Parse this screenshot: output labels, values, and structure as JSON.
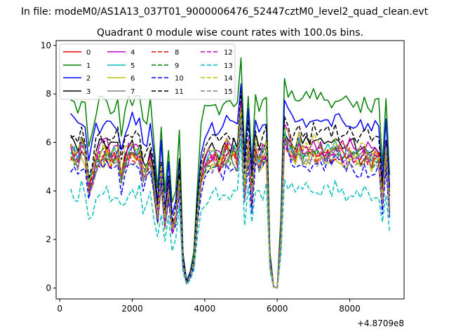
{
  "figure": {
    "suptitle": "In file: modeM0/AS1A13_037T01_9000006476_52447cztM0_level2_quad_clean.evt"
  },
  "chart_data": {
    "type": "line",
    "title": "Quadrant 0 module wise count rates with 100.0s bins.",
    "xlabel": "",
    "ylabel": "",
    "x_offset_label": "+4.8709e8",
    "xlim": [
      -100,
      9500
    ],
    "ylim": [
      -0.45,
      10.2
    ],
    "xticks": [
      0,
      2000,
      4000,
      6000,
      8000
    ],
    "xtick_labels": [
      "0",
      "2000",
      "4000",
      "6000",
      "8000"
    ],
    "yticks": [
      0,
      2,
      4,
      6,
      8,
      10
    ],
    "ytick_labels": [
      "0",
      "2",
      "4",
      "6",
      "8",
      "10"
    ],
    "grid": false,
    "legend_position": "upper-left",
    "legend_columns": 4,
    "series": [
      {
        "name": "0",
        "color": "#ff0000",
        "dash": "solid",
        "offset": 0.0,
        "seed": 11
      },
      {
        "name": "1",
        "color": "#008000",
        "dash": "solid",
        "offset": 2.2,
        "seed": 23
      },
      {
        "name": "2",
        "color": "#0000ff",
        "dash": "solid",
        "offset": 1.3,
        "seed": 37
      },
      {
        "name": "3",
        "color": "#000000",
        "dash": "solid",
        "offset": 0.4,
        "seed": 41
      },
      {
        "name": "4",
        "color": "#bf00bf",
        "dash": "solid",
        "offset": 0.3,
        "seed": 53
      },
      {
        "name": "5",
        "color": "#00bfbf",
        "dash": "solid",
        "offset": 0.1,
        "seed": 67
      },
      {
        "name": "6",
        "color": "#bfbf00",
        "dash": "solid",
        "offset": -0.2,
        "seed": 71
      },
      {
        "name": "7",
        "color": "#808080",
        "dash": "solid",
        "offset": -0.1,
        "seed": 83
      },
      {
        "name": "8",
        "color": "#ff0000",
        "dash": "dashed",
        "offset": -0.1,
        "seed": 97
      },
      {
        "name": "9",
        "color": "#008000",
        "dash": "dashed",
        "offset": 0.0,
        "seed": 101
      },
      {
        "name": "10",
        "color": "#0000ff",
        "dash": "dashed",
        "offset": -0.5,
        "seed": 113
      },
      {
        "name": "11",
        "color": "#000000",
        "dash": "dashed",
        "offset": 0.8,
        "seed": 127
      },
      {
        "name": "12",
        "color": "#bf00bf",
        "dash": "dashed",
        "offset": 0.0,
        "seed": 131
      },
      {
        "name": "13",
        "color": "#00bfbf",
        "dash": "dashed",
        "offset": -1.5,
        "seed": 149
      },
      {
        "name": "14",
        "color": "#bfbf00",
        "dash": "dashed",
        "offset": 0.3,
        "seed": 157
      },
      {
        "name": "15",
        "color": "#808080",
        "dash": "dashed",
        "offset": -0.2,
        "seed": 163
      }
    ],
    "x": [
      300,
      400,
      500,
      600,
      700,
      800,
      900,
      1000,
      1100,
      1200,
      1300,
      1400,
      1500,
      1600,
      1700,
      1800,
      1900,
      2000,
      2100,
      2200,
      2300,
      2400,
      2500,
      2600,
      2700,
      2800,
      2900,
      3000,
      3100,
      3200,
      3300,
      3400,
      3500,
      3600,
      3700,
      3800,
      3900,
      4000,
      4100,
      4200,
      4300,
      4400,
      4500,
      4600,
      4700,
      4800,
      4900,
      5000,
      5100,
      5200,
      5300,
      5400,
      5500,
      5600,
      5700,
      5800,
      5900,
      6000,
      6100,
      6200,
      6300,
      6400,
      6500,
      6600,
      6700,
      6800,
      6900,
      7000,
      7100,
      7200,
      7300,
      7400,
      7500,
      7600,
      7700,
      7800,
      7900,
      8000,
      8100,
      8200,
      8300,
      8400,
      8500,
      8600,
      8700,
      8800,
      8900,
      9000,
      9100
    ],
    "base_values": [
      5.6,
      5.4,
      5.3,
      5.7,
      5.5,
      4.0,
      4.6,
      5.2,
      5.4,
      5.5,
      5.6,
      5.3,
      5.4,
      5.5,
      4.5,
      5.2,
      5.5,
      5.6,
      5.4,
      5.5,
      4.6,
      4.8,
      5.3,
      4.2,
      2.8,
      4.6,
      2.6,
      4.0,
      2.4,
      2.8,
      4.4,
      1.0,
      0.2,
      0.5,
      1.0,
      3.0,
      4.6,
      5.0,
      5.2,
      5.3,
      5.3,
      5.1,
      5.3,
      5.6,
      5.4,
      5.5,
      5.2,
      7.4,
      3.9,
      5.8,
      3.6,
      5.6,
      5.2,
      5.4,
      5.6,
      1.0,
      0.05,
      0.0,
      2.0,
      6.2,
      5.9,
      5.6,
      5.4,
      5.8,
      5.5,
      5.6,
      5.4,
      5.7,
      5.5,
      5.6,
      5.4,
      5.6,
      5.5,
      5.7,
      5.6,
      5.5,
      5.4,
      5.6,
      5.5,
      5.4,
      5.3,
      5.5,
      5.4,
      5.2,
      5.3,
      5.4,
      3.6,
      5.4,
      3.2
    ],
    "legend_entries": [
      "0",
      "1",
      "2",
      "3",
      "4",
      "5",
      "6",
      "7",
      "8",
      "9",
      "10",
      "11",
      "12",
      "13",
      "14",
      "15"
    ]
  }
}
